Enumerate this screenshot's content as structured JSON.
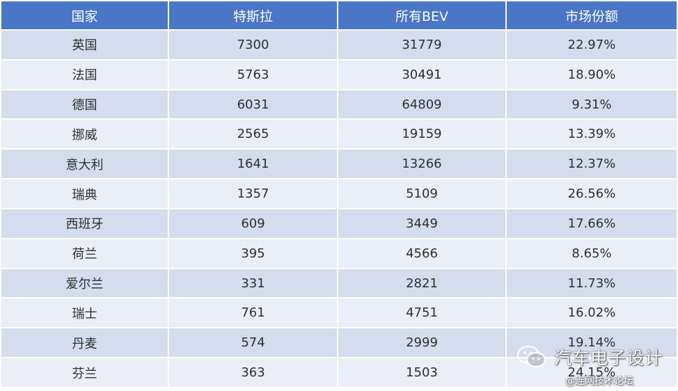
{
  "table": {
    "headers": [
      "国家",
      "特斯拉",
      "所有BEV",
      "市场份额"
    ],
    "rows": [
      [
        "英国",
        "7300",
        "31779",
        "22.97%"
      ],
      [
        "法国",
        "5763",
        "30491",
        "18.90%"
      ],
      [
        "德国",
        "6031",
        "64809",
        "9.31%"
      ],
      [
        "挪威",
        "2565",
        "19159",
        "13.39%"
      ],
      [
        "意大利",
        "1641",
        "13266",
        "12.37%"
      ],
      [
        "瑞典",
        "1357",
        "5109",
        "26.56%"
      ],
      [
        "西班牙",
        "609",
        "3449",
        "17.66%"
      ],
      [
        "荷兰",
        "395",
        "4566",
        "8.65%"
      ],
      [
        "爱尔兰",
        "331",
        "2821",
        "11.73%"
      ],
      [
        "瑞士",
        "761",
        "4751",
        "16.02%"
      ],
      [
        "丹麦",
        "574",
        "2999",
        "19.14%"
      ],
      [
        "芬兰",
        "363",
        "1503",
        "24.15%"
      ]
    ],
    "colors": {
      "header": "#4a76c7",
      "row_odd": "#d3ddee",
      "row_even": "#e9eef7"
    }
  },
  "watermark": {
    "title": "汽车电子设计",
    "subtitle": "@连网技术论坛",
    "icon": "wechat-icon"
  }
}
